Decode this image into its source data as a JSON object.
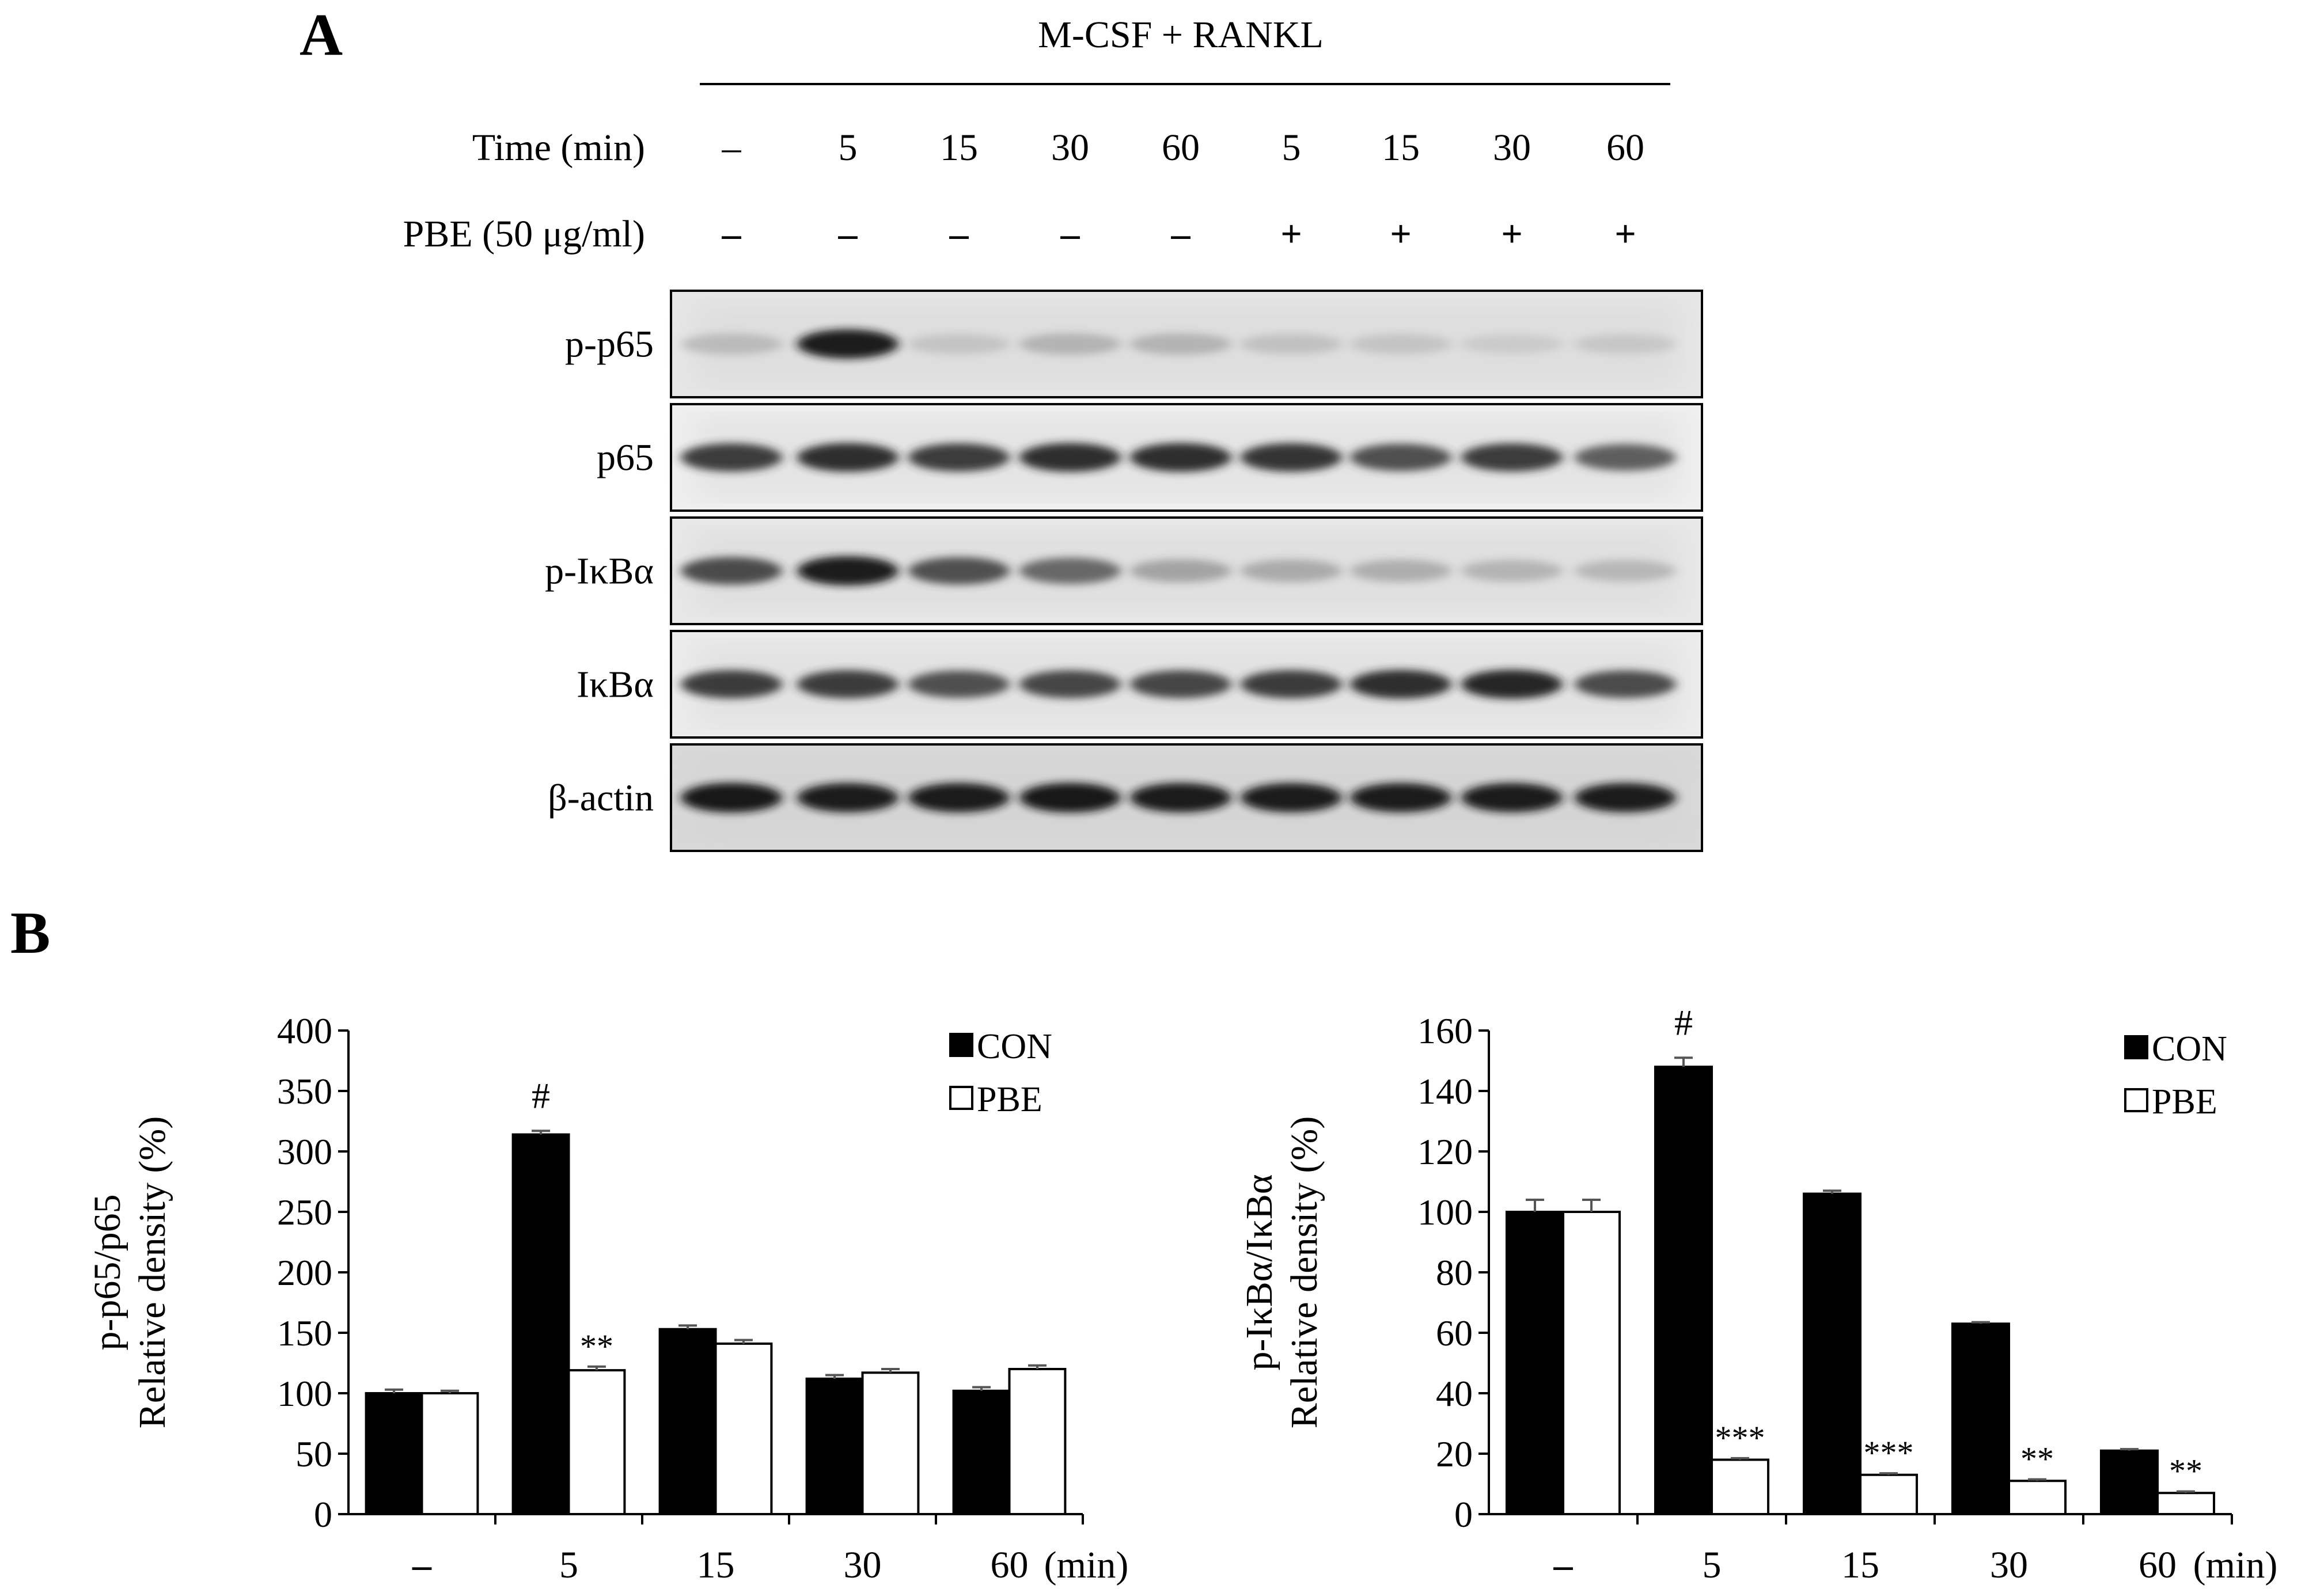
{
  "panel_a": {
    "label": "A",
    "treatment": "M-CSF + RANKL",
    "row_labels": {
      "time": "Time (min)",
      "pbe": "PBE (50 μg/ml)"
    },
    "lanes": [
      {
        "time": "–",
        "pbe": "–"
      },
      {
        "time": "5",
        "pbe": "–"
      },
      {
        "time": "15",
        "pbe": "–"
      },
      {
        "time": "30",
        "pbe": "–"
      },
      {
        "time": "60",
        "pbe": "–"
      },
      {
        "time": "5",
        "pbe": "+"
      },
      {
        "time": "15",
        "pbe": "+"
      },
      {
        "time": "30",
        "pbe": "+"
      },
      {
        "time": "60",
        "pbe": "+"
      }
    ],
    "blots": [
      {
        "label": "p-p65",
        "band_intensity": [
          0.25,
          0.95,
          0.18,
          0.3,
          0.3,
          0.2,
          0.18,
          0.12,
          0.15
        ],
        "background": "#e6e6e6"
      },
      {
        "label": "p65",
        "band_intensity": [
          0.85,
          0.9,
          0.85,
          0.9,
          0.9,
          0.88,
          0.78,
          0.85,
          0.72
        ],
        "background": "#efefef"
      },
      {
        "label": "p-IκBα",
        "band_intensity": [
          0.8,
          0.95,
          0.78,
          0.68,
          0.4,
          0.36,
          0.34,
          0.3,
          0.28
        ],
        "background": "#e8e8e8"
      },
      {
        "label": "IκBα",
        "band_intensity": [
          0.85,
          0.85,
          0.78,
          0.82,
          0.82,
          0.85,
          0.9,
          0.92,
          0.8
        ],
        "background": "#ececec"
      },
      {
        "label": "β-actin",
        "band_intensity": [
          0.98,
          0.95,
          0.96,
          0.98,
          0.96,
          0.95,
          0.95,
          0.95,
          0.95
        ],
        "background": "#d8d8d8"
      }
    ]
  },
  "panel_b": {
    "label": "B"
  },
  "chart_data": [
    {
      "type": "bar",
      "ylabel_line1": "p-p65/p65",
      "ylabel_line2": "Relative density (%)",
      "categories": [
        "–",
        "5",
        "15",
        "30",
        "60"
      ],
      "x_unit": "(min)",
      "ylim": [
        0,
        400
      ],
      "yticks": [
        0,
        50,
        100,
        150,
        200,
        250,
        300,
        350,
        400
      ],
      "series": [
        {
          "name": "CON",
          "color": "#000000",
          "values": [
            100,
            314,
            153,
            112,
            102
          ],
          "errors": [
            3,
            3,
            3,
            3,
            3
          ]
        },
        {
          "name": "PBE",
          "color": "#ffffff",
          "values": [
            100,
            119,
            141,
            117,
            120
          ],
          "errors": [
            2,
            3,
            3,
            3,
            3
          ]
        }
      ],
      "annotations": [
        {
          "category": 1,
          "series": 0,
          "text": "#"
        },
        {
          "category": 1,
          "series": 1,
          "text": "**"
        }
      ],
      "legend_position": "top-right"
    },
    {
      "type": "bar",
      "ylabel_line1": "p-IκBα/IκBα",
      "ylabel_line2": "Relative density (%)",
      "categories": [
        "–",
        "5",
        "15",
        "30",
        "60"
      ],
      "x_unit": "(min)",
      "ylim": [
        0,
        160
      ],
      "yticks": [
        0,
        20,
        40,
        60,
        80,
        100,
        120,
        140,
        160
      ],
      "series": [
        {
          "name": "CON",
          "color": "#000000",
          "values": [
            100,
            148,
            106,
            63,
            21
          ],
          "errors": [
            4,
            3,
            1,
            0.5,
            0.5
          ]
        },
        {
          "name": "PBE",
          "color": "#ffffff",
          "values": [
            100,
            18,
            13,
            11,
            7
          ],
          "errors": [
            4,
            0.5,
            0.5,
            0.5,
            0.5
          ]
        }
      ],
      "annotations": [
        {
          "category": 1,
          "series": 0,
          "text": "#"
        },
        {
          "category": 1,
          "series": 1,
          "text": "***"
        },
        {
          "category": 2,
          "series": 1,
          "text": "***"
        },
        {
          "category": 3,
          "series": 1,
          "text": "**"
        },
        {
          "category": 4,
          "series": 1,
          "text": "**"
        }
      ],
      "legend_position": "top-right"
    }
  ]
}
